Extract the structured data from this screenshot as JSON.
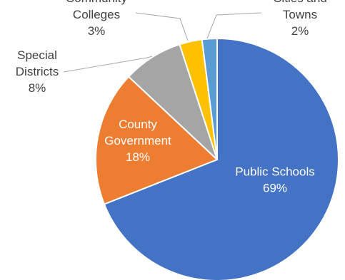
{
  "chart_data": {
    "type": "pie",
    "slices": [
      {
        "lines": [
          "Public Schools"
        ],
        "pct_label": "69%",
        "value": 69,
        "color": "#4472C4",
        "label_color": "#ffffff"
      },
      {
        "lines": [
          "County",
          "Government"
        ],
        "pct_label": "18%",
        "value": 18,
        "color": "#ED7D31",
        "label_color": "#ffffff"
      },
      {
        "lines": [
          "Special",
          "Districts"
        ],
        "pct_label": "8%",
        "value": 8,
        "color": "#A5A5A5",
        "label_color": "#404040"
      },
      {
        "lines": [
          "Community",
          "Colleges"
        ],
        "pct_label": "3%",
        "value": 3,
        "color": "#FFC000",
        "label_color": "#404040"
      },
      {
        "lines": [
          "Cities and",
          "Towns"
        ],
        "pct_label": "2%",
        "value": 2,
        "color": "#5B9BD5",
        "label_color": "#404040"
      }
    ]
  }
}
